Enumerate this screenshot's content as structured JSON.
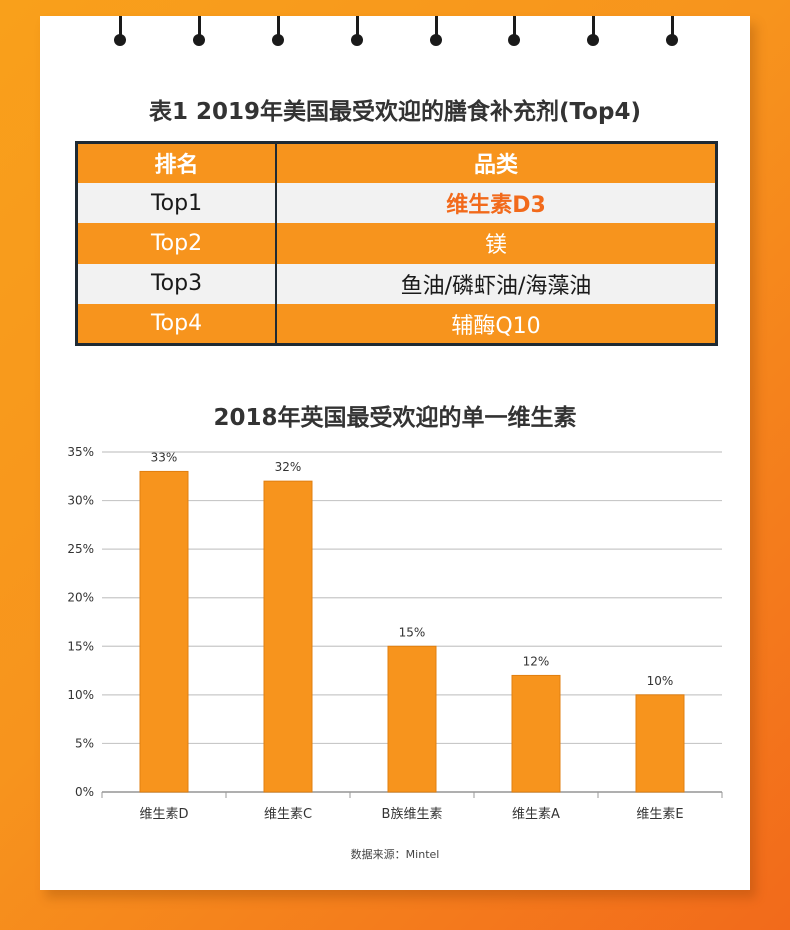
{
  "table": {
    "title": "表1 2019年美国最受欢迎的膳食补充剂(Top4)",
    "headers": [
      "排名",
      "品类"
    ],
    "rows": [
      {
        "rank": "Top1",
        "category": "维生素D3"
      },
      {
        "rank": "Top2",
        "category": "镁"
      },
      {
        "rank": "Top3",
        "category": "鱼油/磷虾油/海藻油"
      },
      {
        "rank": "Top4",
        "category": "辅酶Q10"
      }
    ]
  },
  "chart_data": {
    "type": "bar",
    "title": "2018年英国最受欢迎的单一维生素",
    "categories": [
      "维生素D",
      "维生素C",
      "B族维生素",
      "维生素A",
      "维生素E"
    ],
    "values": [
      33,
      32,
      15,
      12,
      10
    ],
    "data_labels": [
      "33%",
      "32%",
      "15%",
      "12%",
      "10%"
    ],
    "yticks": [
      "0%",
      "5%",
      "10%",
      "15%",
      "20%",
      "25%",
      "30%",
      "35%"
    ],
    "ylim": [
      0,
      35
    ],
    "grid": true,
    "bar_color": "#f7941d",
    "source": "数据来源：Mintel"
  },
  "colors": {
    "accent": "#f7941d",
    "highlight": "#f26a1b",
    "border": "#1f2a33"
  }
}
